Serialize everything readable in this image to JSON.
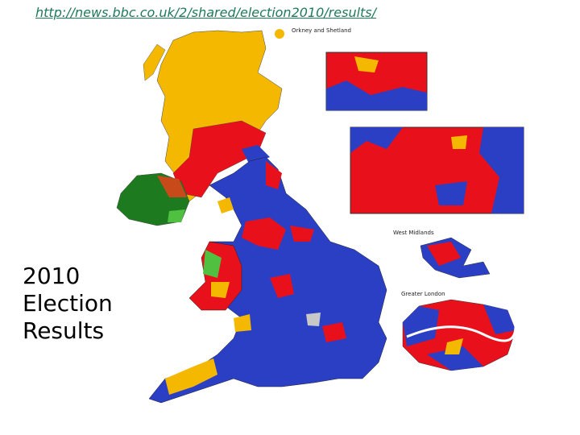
{
  "header": {
    "url": "http://news.bbc.co.uk/2/shared/election2010/results/"
  },
  "title": "2010 Election Results",
  "map": {
    "labels": [
      "Orkney and Shetland",
      "West Midlands",
      "Greater London"
    ]
  }
}
